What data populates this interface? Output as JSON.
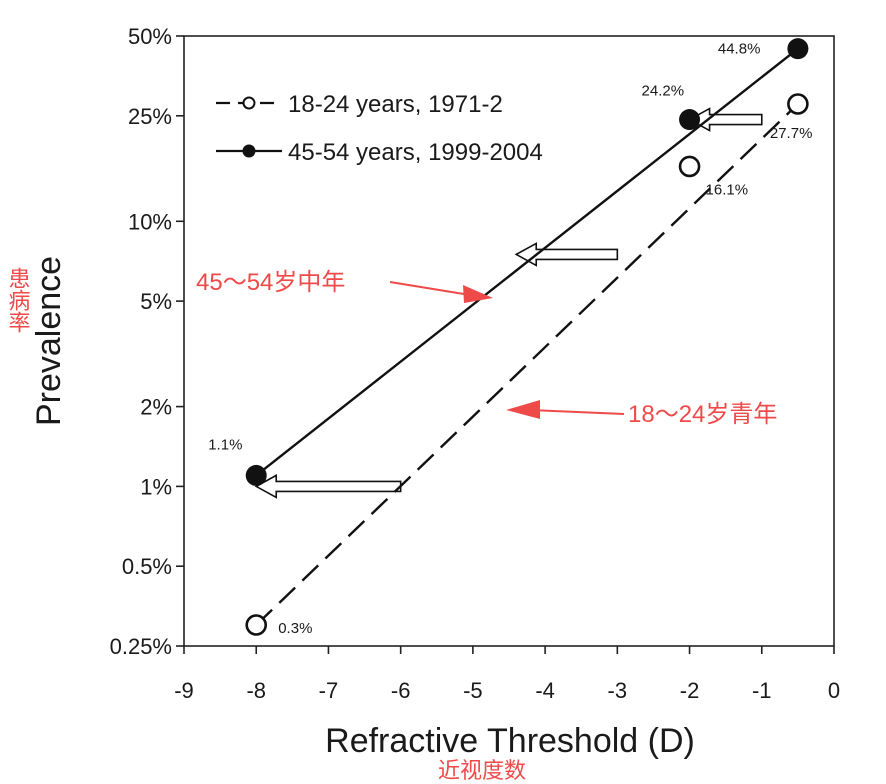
{
  "chart_data": {
    "type": "scatter",
    "xlabel": "Refractive Threshold (D)",
    "ylabel": "Prevalence",
    "xlim": [
      -9,
      0
    ],
    "ylim": [
      0.25,
      50
    ],
    "yscale": "log",
    "x_ticks": [
      -9,
      -8,
      -7,
      -6,
      -5,
      -4,
      -3,
      -2,
      -1,
      0
    ],
    "y_ticks": [
      {
        "value": 0.25,
        "label": "0.25%"
      },
      {
        "value": 0.5,
        "label": "0.5%"
      },
      {
        "value": 1,
        "label": "1%"
      },
      {
        "value": 2,
        "label": "2%"
      },
      {
        "value": 5,
        "label": "5%"
      },
      {
        "value": 10,
        "label": "10%"
      },
      {
        "value": 25,
        "label": "25%"
      },
      {
        "value": 50,
        "label": "50%"
      }
    ],
    "grid": false,
    "legend_position": "top-left",
    "series": [
      {
        "name": "18-24 years, 1971-2",
        "marker": "open-circle",
        "line": "dashed",
        "points": [
          {
            "x": -8,
            "y": 0.3,
            "label": "0.3%"
          },
          {
            "x": -2,
            "y": 16.1,
            "label": "16.1%"
          },
          {
            "x": -0.5,
            "y": 27.7,
            "label": "27.7%"
          }
        ]
      },
      {
        "name": "45-54 years, 1999-2004",
        "marker": "filled-circle",
        "line": "solid",
        "points": [
          {
            "x": -8,
            "y": 1.1,
            "label": "1.1%"
          },
          {
            "x": -2,
            "y": 24.2,
            "label": "24.2%"
          },
          {
            "x": -0.5,
            "y": 44.8,
            "label": "44.8%"
          }
        ]
      }
    ],
    "shift_arrows": [
      {
        "from": {
          "x": -6,
          "y": 1
        },
        "to": {
          "x": -8,
          "y": 1
        }
      },
      {
        "from": {
          "x": -3,
          "y": 7.5
        },
        "to": {
          "x": -4.4,
          "y": 7.5
        }
      },
      {
        "from": {
          "x": -1,
          "y": 24.2
        },
        "to": {
          "x": -2,
          "y": 24.2
        }
      }
    ],
    "annotations": {
      "y_axis_cn": "患病率",
      "x_axis_cn": "近视度数",
      "callout_old": "45～54岁中年",
      "callout_young": "18～24岁青年",
      "annotation_color": "#ef4a4a"
    }
  }
}
